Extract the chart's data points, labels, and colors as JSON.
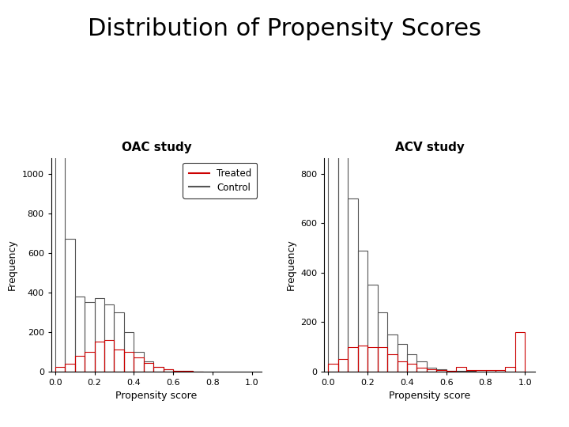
{
  "title": "Distribution of Propensity Scores",
  "title_fontsize": 22,
  "oac_title": "OAC study",
  "acv_title": "ACV study",
  "xlabel": "Propensity score",
  "ylabel": "Frequency",
  "bin_edges": [
    0.0,
    0.05,
    0.1,
    0.15,
    0.2,
    0.25,
    0.3,
    0.35,
    0.4,
    0.45,
    0.5,
    0.55,
    0.6,
    0.65,
    0.7,
    0.75,
    0.8,
    0.85,
    0.9,
    0.95,
    1.0
  ],
  "oac_control": [
    1100,
    670,
    380,
    350,
    370,
    340,
    300,
    200,
    100,
    50,
    25,
    10,
    5,
    2,
    1,
    0,
    0,
    0,
    0,
    0
  ],
  "oac_treated": [
    25,
    40,
    80,
    100,
    150,
    160,
    110,
    100,
    70,
    45,
    25,
    10,
    5,
    2,
    1,
    0,
    0,
    0,
    0,
    0
  ],
  "acv_control": [
    900,
    870,
    700,
    490,
    350,
    240,
    150,
    110,
    70,
    40,
    15,
    8,
    4,
    2,
    1,
    0,
    0,
    0,
    0,
    0
  ],
  "acv_treated": [
    30,
    50,
    100,
    105,
    100,
    100,
    70,
    40,
    30,
    15,
    8,
    5,
    3,
    20,
    5,
    5,
    5,
    5,
    20,
    160
  ],
  "control_color": "#555555",
  "treated_color": "#cc0000",
  "background_color": "#ffffff",
  "oac_yticks": [
    0,
    200,
    400,
    600,
    800,
    1000
  ],
  "acv_yticks": [
    0,
    200,
    400,
    600,
    800
  ],
  "xlim": [
    -0.02,
    1.05
  ],
  "xticks": [
    0.0,
    0.2,
    0.4,
    0.6,
    0.8,
    1.0
  ]
}
